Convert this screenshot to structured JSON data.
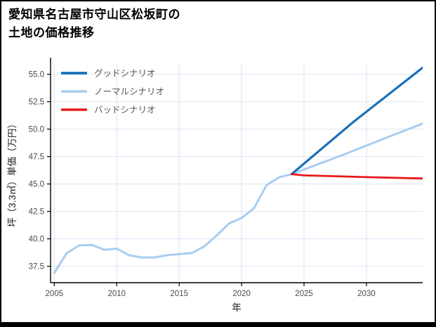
{
  "title": {
    "line1": "愛知県名古屋市守山区松坂町の",
    "line2": "土地の価格推移"
  },
  "chart_data": {
    "type": "line",
    "title": "愛知県名古屋市守山区松坂町の土地の価格推移",
    "xlabel": "年",
    "ylabel": "坪（3.3㎡）単価（万円）",
    "xlim": [
      2004.7,
      2034.5
    ],
    "ylim": [
      36,
      56
    ],
    "grid": true,
    "legend_position": "upper left",
    "colors": {
      "background": "#ffffff",
      "grid": "#d9e4f2",
      "axis": "#000000",
      "tick_label": "#4a4a4a",
      "legend_text": "#555555"
    },
    "xticks": {
      "values": [
        2005,
        2010,
        2015,
        2020,
        2025,
        2030
      ],
      "labels": [
        "2005",
        "2010",
        "2015",
        "2020",
        "2025",
        "2030"
      ]
    },
    "yticks": {
      "values": [
        37.5,
        40,
        42.5,
        45,
        47.5,
        50,
        52.5,
        55
      ],
      "labels": [
        "37.5",
        "40.0",
        "42.5",
        "45.0",
        "47.5",
        "50.0",
        "52.5",
        "55.0"
      ]
    },
    "series": [
      {
        "id": "good",
        "name": "グッドシナリオ",
        "color": "#1a70b8",
        "line_width": 3.2,
        "zorder": 2,
        "x": [
          2024,
          2029,
          2034.5
        ],
        "y": [
          45.9,
          50.7,
          55.6
        ]
      },
      {
        "id": "normal",
        "name": "ノーマルシナリオ",
        "color": "#a9cdf0",
        "line_width": 3,
        "zorder": 1,
        "x": [
          2005,
          2006,
          2007,
          2008,
          2009,
          2010,
          2011,
          2012,
          2013,
          2014,
          2015,
          2016,
          2017,
          2018,
          2019,
          2020,
          2021,
          2022,
          2023,
          2024,
          2026,
          2028,
          2030,
          2032,
          2034.5
        ],
        "y": [
          36.9,
          38.7,
          39.4,
          39.45,
          39.0,
          39.1,
          38.5,
          38.3,
          38.3,
          38.5,
          38.6,
          38.7,
          39.3,
          40.3,
          41.4,
          41.9,
          42.8,
          44.9,
          45.6,
          45.9,
          46.75,
          47.6,
          48.5,
          49.4,
          50.5
        ]
      },
      {
        "id": "bad",
        "name": "バッドシナリオ",
        "color": "#e8191c",
        "line_width": 2.8,
        "zorder": 3,
        "x": [
          2024,
          2025,
          2030,
          2034.5
        ],
        "y": [
          45.9,
          45.78,
          45.62,
          45.5
        ]
      }
    ]
  }
}
